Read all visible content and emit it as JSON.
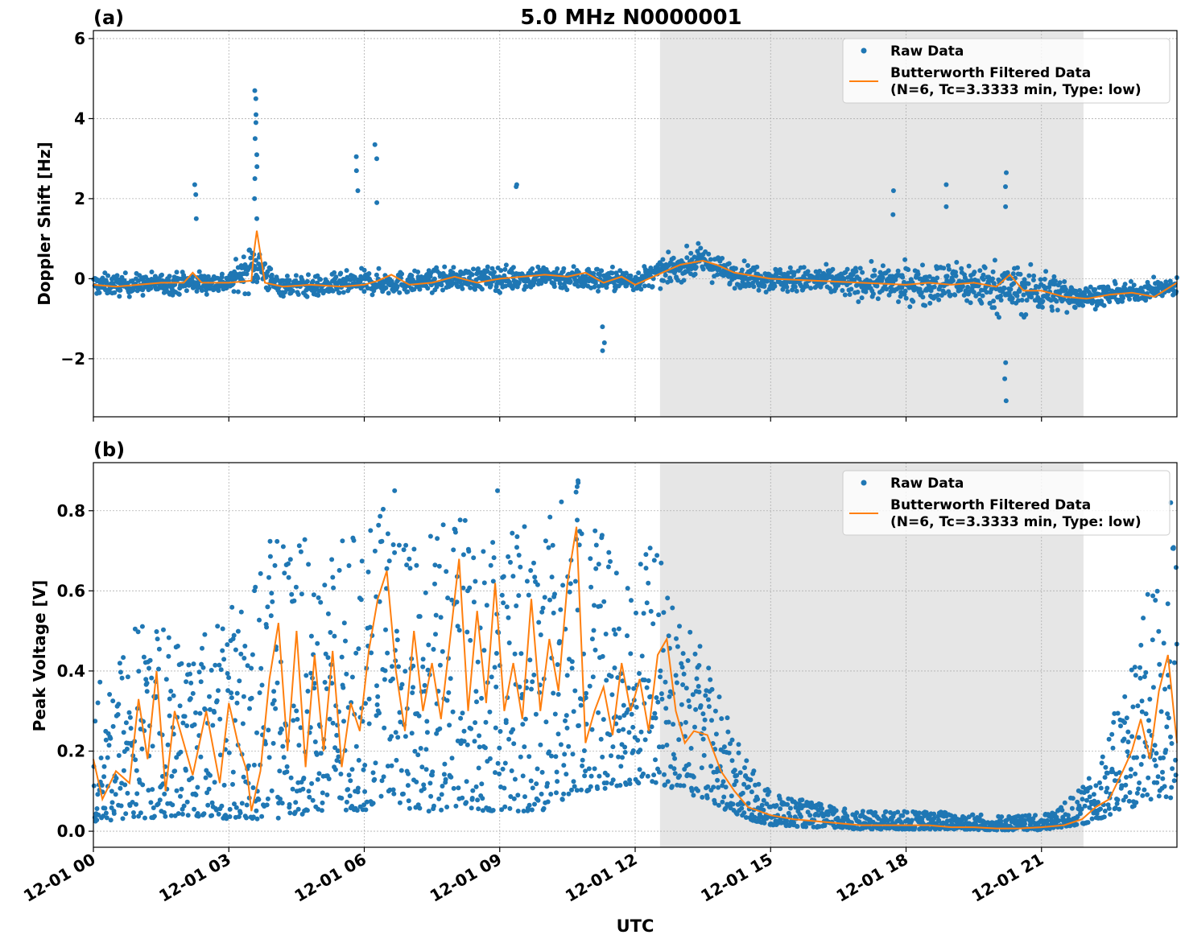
{
  "figure": {
    "title": "5.0 MHz N0000001",
    "xlabel": "UTC",
    "x_tick_labels": [
      "12-01 00",
      "12-01 03",
      "12-01 06",
      "12-01 09",
      "12-01 12",
      "12-01 15",
      "12-01 18",
      "12-01 21"
    ],
    "colors": {
      "raw": "#1f77b4",
      "filtered": "#ff7f0e",
      "shade": "#e6e6e6",
      "grid": "#b0b0b0"
    }
  },
  "chart_data": [
    {
      "panel": "(a)",
      "type": "scatter+line",
      "ylabel": "Doppler Shift [Hz]",
      "xlim_hours": [
        0,
        24
      ],
      "ylim": [
        -3.45,
        6.2
      ],
      "y_ticks": [
        -2,
        0,
        2,
        4,
        6
      ],
      "y_tick_labels": [
        "−2",
        "0",
        "2",
        "4",
        "6"
      ],
      "shaded_region_hours": [
        12.55,
        21.93
      ],
      "legend": {
        "location": "upper right",
        "raw_label": "Raw Data",
        "filtered_label_line1": "Butterworth Filtered Data",
        "filtered_label_line2": "(N=6, Tc=3.3333 min, Type: low)"
      },
      "series": [
        {
          "name": "Butterworth Filtered Data",
          "kind": "line",
          "x_hours": [
            0,
            0.5,
            1,
            1.5,
            2,
            2.2,
            2.4,
            3,
            3.5,
            3.55,
            3.62,
            3.8,
            4.2,
            4.8,
            5.5,
            6,
            6.3,
            6.6,
            7,
            7.5,
            8,
            8.5,
            9,
            9.5,
            10,
            10.5,
            10.9,
            11.3,
            11.7,
            12,
            12.5,
            13,
            13.5,
            13.8,
            14.2,
            15,
            16,
            17,
            18,
            18.5,
            19,
            19.5,
            20,
            20.3,
            20.6,
            21,
            21.5,
            22,
            22.5,
            23,
            23.5,
            24
          ],
          "values": [
            -0.15,
            -0.2,
            -0.15,
            -0.1,
            -0.1,
            0.15,
            -0.1,
            -0.1,
            -0.05,
            0.6,
            1.2,
            -0.1,
            -0.2,
            -0.15,
            -0.2,
            -0.15,
            -0.05,
            0.1,
            -0.15,
            -0.1,
            0.05,
            -0.1,
            0.0,
            0.05,
            0.1,
            0.05,
            0.15,
            -0.1,
            0.05,
            -0.15,
            0.1,
            0.35,
            0.45,
            0.35,
            0.15,
            0.0,
            -0.05,
            -0.1,
            -0.15,
            -0.1,
            -0.15,
            -0.1,
            -0.2,
            0.1,
            -0.3,
            -0.3,
            -0.45,
            -0.5,
            -0.4,
            -0.35,
            -0.45,
            -0.1
          ]
        },
        {
          "name": "Raw Data",
          "kind": "scatter-band",
          "band_center_hours": [
            0,
            1,
            2,
            3,
            3.6,
            4,
            5,
            6,
            7,
            8,
            9,
            10,
            11,
            12,
            13,
            13.5,
            14,
            15,
            16,
            17,
            18,
            19,
            20,
            20.5,
            21,
            21.5,
            22,
            23,
            24
          ],
          "band_center": [
            -0.15,
            -0.15,
            -0.1,
            -0.1,
            0.4,
            -0.15,
            -0.2,
            -0.1,
            -0.1,
            0.0,
            0.0,
            0.05,
            0.0,
            -0.05,
            0.3,
            0.45,
            0.15,
            0.0,
            -0.05,
            -0.1,
            -0.15,
            -0.1,
            -0.2,
            -0.3,
            -0.3,
            -0.4,
            -0.45,
            -0.35,
            -0.2
          ],
          "band_halfwidth": [
            0.35,
            0.35,
            0.35,
            0.35,
            0.8,
            0.35,
            0.35,
            0.4,
            0.35,
            0.35,
            0.4,
            0.4,
            0.4,
            0.35,
            0.45,
            0.5,
            0.4,
            0.4,
            0.45,
            0.5,
            0.6,
            0.7,
            0.8,
            0.85,
            0.7,
            0.55,
            0.35,
            0.3,
            0.3
          ],
          "outliers": [
            {
              "x_hours": 3.6,
              "values": [
                1.5,
                2.0,
                2.5,
                2.8,
                3.1,
                3.5,
                3.9,
                4.1,
                4.5,
                4.7
              ]
            },
            {
              "x_hours": 2.25,
              "values": [
                1.5,
                2.1,
                2.35
              ]
            },
            {
              "x_hours": 5.85,
              "values": [
                2.2,
                2.7,
                3.05
              ]
            },
            {
              "x_hours": 6.25,
              "values": [
                1.9,
                3.0,
                3.35
              ]
            },
            {
              "x_hours": 9.35,
              "values": [
                2.3,
                2.35
              ]
            },
            {
              "x_hours": 11.3,
              "values": [
                -1.2,
                -1.6,
                -1.8
              ]
            },
            {
              "x_hours": 17.7,
              "values": [
                1.6,
                2.2
              ]
            },
            {
              "x_hours": 18.9,
              "values": [
                1.8,
                2.35
              ]
            },
            {
              "x_hours": 20.2,
              "values": [
                1.8,
                2.3,
                2.65,
                -2.1,
                -2.5,
                -3.05
              ]
            }
          ]
        }
      ]
    },
    {
      "panel": "(b)",
      "type": "scatter+line",
      "ylabel": "Peak Voltage [V]",
      "xlim_hours": [
        0,
        24
      ],
      "ylim": [
        -0.04,
        0.92
      ],
      "y_ticks": [
        0.0,
        0.2,
        0.4,
        0.6,
        0.8
      ],
      "y_tick_labels": [
        "0.0",
        "0.2",
        "0.4",
        "0.6",
        "0.8"
      ],
      "shaded_region_hours": [
        12.55,
        21.93
      ],
      "legend": {
        "location": "upper right",
        "raw_label": "Raw Data",
        "filtered_label_line1": "Butterworth Filtered Data",
        "filtered_label_line2": "(N=6, Tc=3.3333 min, Type: low)"
      },
      "series": [
        {
          "name": "Butterworth Filtered Data",
          "kind": "line",
          "x_hours": [
            0,
            0.2,
            0.5,
            0.8,
            1.0,
            1.2,
            1.4,
            1.6,
            1.8,
            2.0,
            2.2,
            2.5,
            2.8,
            3.0,
            3.2,
            3.4,
            3.5,
            3.7,
            3.9,
            4.1,
            4.3,
            4.5,
            4.7,
            4.9,
            5.1,
            5.3,
            5.5,
            5.7,
            5.9,
            6.1,
            6.3,
            6.5,
            6.7,
            6.9,
            7.1,
            7.3,
            7.5,
            7.7,
            7.9,
            8.1,
            8.3,
            8.5,
            8.7,
            8.9,
            9.1,
            9.3,
            9.5,
            9.7,
            9.9,
            10.1,
            10.3,
            10.5,
            10.7,
            10.9,
            11.1,
            11.3,
            11.5,
            11.7,
            11.9,
            12.1,
            12.3,
            12.5,
            12.7,
            12.9,
            13.1,
            13.3,
            13.6,
            13.9,
            14.2,
            14.5,
            15,
            15.5,
            16,
            16.5,
            17,
            17.5,
            18,
            18.5,
            19,
            19.5,
            20,
            20.5,
            21,
            21.5,
            21.9,
            22.2,
            22.5,
            22.8,
            23,
            23.2,
            23.4,
            23.6,
            23.8,
            24
          ],
          "values": [
            0.18,
            0.08,
            0.15,
            0.12,
            0.33,
            0.18,
            0.4,
            0.1,
            0.3,
            0.22,
            0.14,
            0.3,
            0.12,
            0.32,
            0.22,
            0.15,
            0.05,
            0.15,
            0.38,
            0.52,
            0.2,
            0.5,
            0.16,
            0.44,
            0.2,
            0.45,
            0.16,
            0.32,
            0.25,
            0.45,
            0.58,
            0.65,
            0.4,
            0.25,
            0.5,
            0.3,
            0.42,
            0.28,
            0.48,
            0.68,
            0.3,
            0.55,
            0.32,
            0.62,
            0.3,
            0.42,
            0.28,
            0.58,
            0.3,
            0.48,
            0.35,
            0.62,
            0.76,
            0.22,
            0.3,
            0.36,
            0.24,
            0.42,
            0.3,
            0.38,
            0.25,
            0.44,
            0.48,
            0.3,
            0.22,
            0.25,
            0.24,
            0.15,
            0.1,
            0.06,
            0.04,
            0.03,
            0.025,
            0.02,
            0.015,
            0.015,
            0.015,
            0.015,
            0.01,
            0.01,
            0.007,
            0.007,
            0.01,
            0.015,
            0.03,
            0.06,
            0.08,
            0.15,
            0.2,
            0.28,
            0.18,
            0.35,
            0.44,
            0.22
          ]
        },
        {
          "name": "Raw Data",
          "kind": "scatter-band",
          "band_center_hours": [
            0,
            1,
            2,
            3,
            4,
            5,
            6,
            6.5,
            7,
            8,
            9,
            10,
            10.7,
            11,
            12,
            12.5,
            13,
            13.5,
            14,
            14.5,
            15,
            16,
            17,
            18,
            19,
            20,
            21,
            21.5,
            22,
            22.5,
            23,
            23.5,
            24
          ],
          "band_low": [
            0.02,
            0.03,
            0.04,
            0.03,
            0.03,
            0.05,
            0.05,
            0.1,
            0.05,
            0.05,
            0.05,
            0.05,
            0.1,
            0.1,
            0.12,
            0.12,
            0.1,
            0.08,
            0.05,
            0.03,
            0.015,
            0.01,
            0.005,
            0.005,
            0.005,
            0.003,
            0.003,
            0.01,
            0.02,
            0.04,
            0.06,
            0.08,
            0.08
          ],
          "band_high": [
            0.35,
            0.55,
            0.5,
            0.55,
            0.75,
            0.72,
            0.75,
            0.82,
            0.7,
            0.8,
            0.78,
            0.8,
            0.86,
            0.75,
            0.75,
            0.7,
            0.55,
            0.45,
            0.3,
            0.17,
            0.1,
            0.07,
            0.05,
            0.05,
            0.05,
            0.04,
            0.04,
            0.07,
            0.12,
            0.25,
            0.45,
            0.65,
            0.75
          ],
          "outliers": [
            {
              "x_hours": 10.72,
              "values": [
                0.86,
                0.87,
                0.875
              ]
            },
            {
              "x_hours": 8.95,
              "values": [
                0.85
              ]
            },
            {
              "x_hours": 6.65,
              "values": [
                0.85
              ]
            },
            {
              "x_hours": 23.85,
              "values": [
                0.82
              ]
            }
          ]
        }
      ]
    }
  ]
}
